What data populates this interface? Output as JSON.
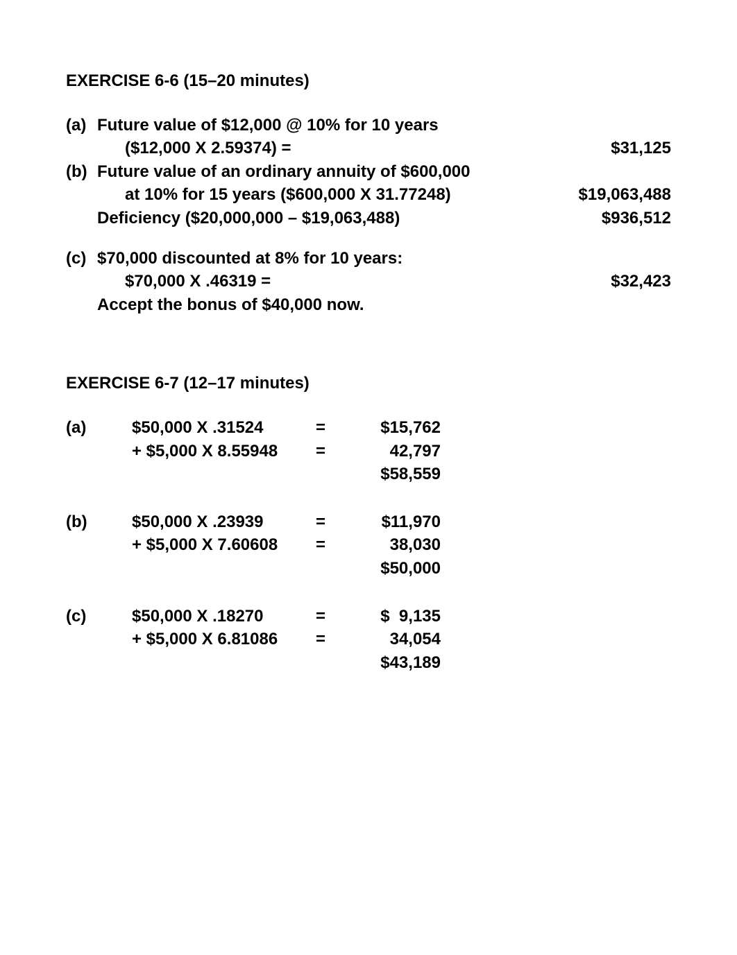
{
  "exercise6": {
    "heading": "EXERCISE 6-6 (15–20 minutes)",
    "a": {
      "label": "(a)",
      "line1": "Future value of $12,000 @ 10% for 10 years",
      "line2": "($12,000 X 2.59374) =",
      "value": "$31,125"
    },
    "b": {
      "label": "(b)",
      "line1": "Future value of an ordinary annuity of $600,000",
      "line2": "at 10% for 15 years ($600,000 X 31.77248)",
      "value1": "$19,063,488",
      "line3": "Deficiency ($20,000,000 – $19,063,488)",
      "value2": "$936,512"
    },
    "c": {
      "label": "(c)",
      "line1": "$70,000 discounted at 8% for 10 years:",
      "line2": "$70,000 X .46319 =",
      "value": "$32,423",
      "line3": "Accept the bonus of $40,000 now."
    }
  },
  "exercise7": {
    "heading": "EXERCISE 6-7 (12–17 minutes)",
    "a": {
      "label": "(a)",
      "r1_expr": "$50,000 X .31524",
      "r1_eq": "=",
      "r1_val": "$15,762",
      "r2_expr": "+ $5,000 X 8.55948",
      "r2_eq": "=",
      "r2_val": "42,797",
      "r3_val": "$58,559"
    },
    "b": {
      "label": "(b)",
      "r1_expr": "$50,000 X .23939",
      "r1_eq": "=",
      "r1_val": "$11,970",
      "r2_expr": "+ $5,000 X 7.60608",
      "r2_eq": "=",
      "r2_val": "38,030",
      "r3_val": "$50,000"
    },
    "c": {
      "label": "(c)",
      "r1_expr": "$50,000 X .18270",
      "r1_eq": "=",
      "r1_val": "$  9,135",
      "r2_expr": "+ $5,000 X 6.81086",
      "r2_eq": "=",
      "r2_val": "34,054",
      "r3_val": "$43,189"
    }
  }
}
